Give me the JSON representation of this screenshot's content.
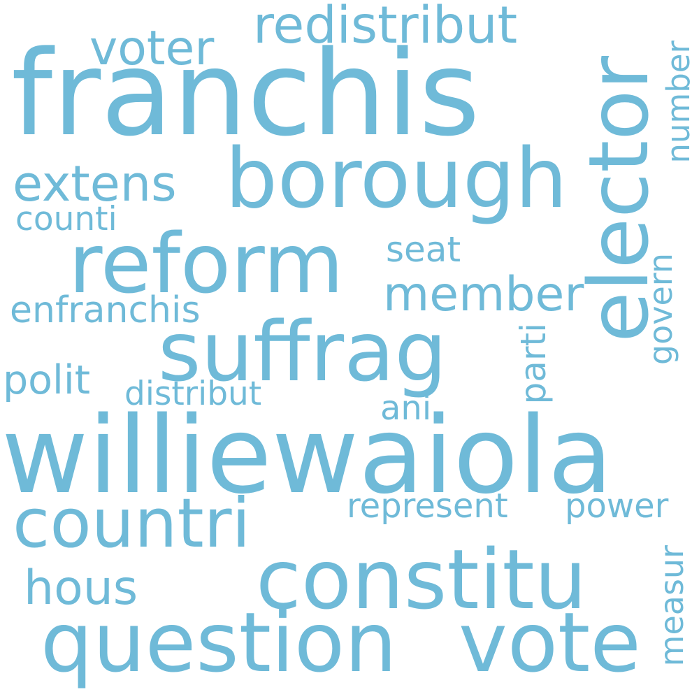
{
  "word_color": "#6fbad8",
  "background_color": "#ffffff",
  "words": {
    "franchis": "franchis",
    "williewaiola": "williewaiola",
    "borough": "borough",
    "reform": "reform",
    "suffrag": "suffrag",
    "elector": "elector",
    "constitu": "constitu",
    "question": "question",
    "vote": "vote",
    "countri": "countri",
    "redistribut": "redistribut",
    "voter": "voter",
    "extens": "extens",
    "member": "member",
    "hous": "hous",
    "counti": "counti",
    "enfranchis": "enfranchis",
    "polit": "polit",
    "distribut": "distribut",
    "seat": "seat",
    "ani": "ani",
    "represent": "represent",
    "power": "power",
    "number": "number",
    "govern": "govern",
    "parti": "parti",
    "measur": "measur"
  }
}
